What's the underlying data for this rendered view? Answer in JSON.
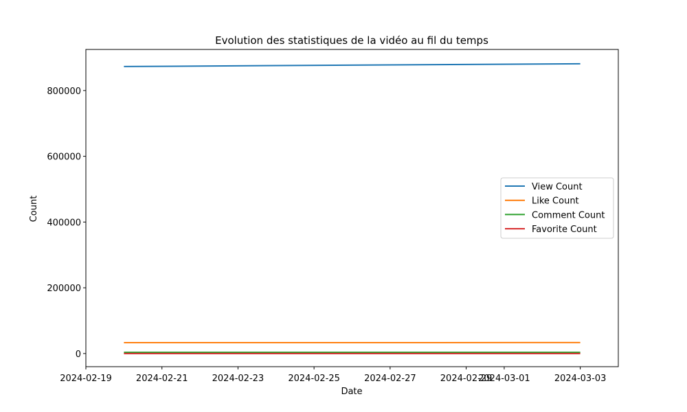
{
  "chart_data": {
    "type": "line",
    "title": "Evolution des statistiques de la vidéo au fil du temps",
    "xlabel": "Date",
    "ylabel": "Count",
    "x": [
      "2024-02-20",
      "2024-03-03"
    ],
    "x_tick_labels": [
      "2024-02-19",
      "2024-02-21",
      "2024-02-23",
      "2024-02-25",
      "2024-02-27",
      "2024-02-29",
      "2024-03-01",
      "2024-03-03"
    ],
    "xlim": [
      "2024-02-19",
      "2024-03-04"
    ],
    "y_tick_labels": [
      "0",
      "200000",
      "400000",
      "600000",
      "800000"
    ],
    "ylim": [
      -40000,
      925000
    ],
    "grid": false,
    "legend_position": "center-right",
    "series": [
      {
        "name": "View Count",
        "color": "#1f77b4",
        "values": [
          873000,
          881500
        ]
      },
      {
        "name": "Like Count",
        "color": "#ff7f0e",
        "values": [
          33000,
          33300
        ]
      },
      {
        "name": "Comment Count",
        "color": "#2ca02c",
        "values": [
          3500,
          3550
        ]
      },
      {
        "name": "Favorite Count",
        "color": "#d62728",
        "values": [
          0,
          0
        ]
      }
    ]
  }
}
